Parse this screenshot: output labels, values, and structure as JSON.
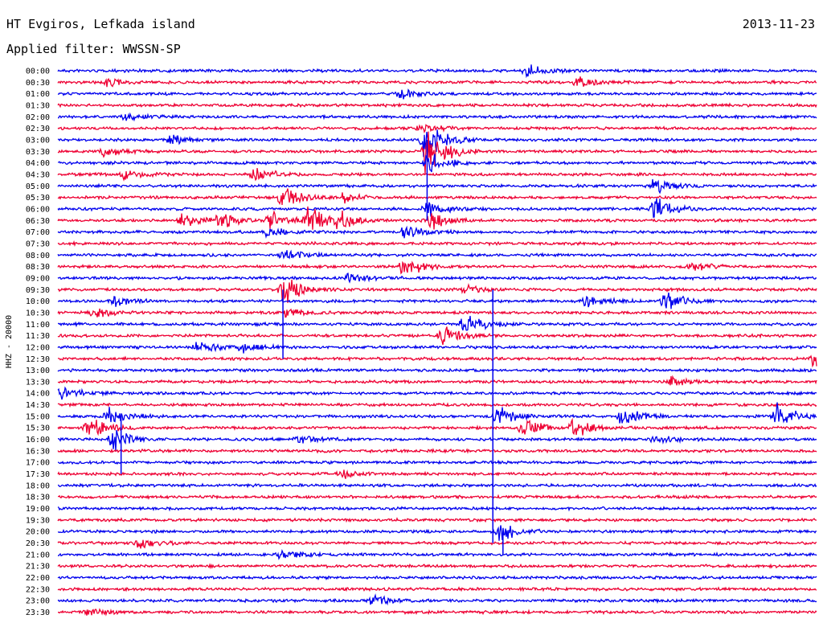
{
  "header": {
    "station": "HT Evgiros, Lefkada island",
    "filter_line": "Applied filter: WWSSN-SP",
    "date": "2013-11-23"
  },
  "chart_data": {
    "type": "line",
    "title": "HT Evgiros, Lefkada island",
    "subtitle": "Applied filter: WWSSN-SP",
    "date": "2013-11-23",
    "ylabel": "HHZ - 20000",
    "y_tick_labels": [
      "00:00",
      "00:30",
      "01:00",
      "01:30",
      "02:00",
      "02:30",
      "03:00",
      "03:30",
      "04:00",
      "04:30",
      "05:00",
      "05:30",
      "06:00",
      "06:30",
      "07:00",
      "07:30",
      "08:00",
      "08:30",
      "09:00",
      "09:30",
      "10:00",
      "10:30",
      "11:00",
      "11:30",
      "12:00",
      "12:30",
      "13:00",
      "13:30",
      "14:00",
      "14:30",
      "15:00",
      "15:30",
      "16:00",
      "16:30",
      "17:00",
      "17:30",
      "18:00",
      "18:30",
      "19:00",
      "19:30",
      "20:00",
      "20:30",
      "21:00",
      "21:30",
      "22:00",
      "22:30",
      "23:00",
      "23:30"
    ],
    "row_colors": [
      "#0000ee",
      "#ee0033"
    ],
    "line_minutes": 30,
    "events": [
      {
        "line": "00:00",
        "minute": 18.5,
        "amp": 0.8
      },
      {
        "line": "00:30",
        "minute": 2.0,
        "amp": 0.5
      },
      {
        "line": "00:30",
        "minute": 20.5,
        "amp": 0.6
      },
      {
        "line": "01:00",
        "minute": 13.5,
        "amp": 0.7
      },
      {
        "line": "02:00",
        "minute": 2.6,
        "amp": 0.5
      },
      {
        "line": "02:30",
        "minute": 14.4,
        "amp": 0.6
      },
      {
        "line": "03:00",
        "minute": 4.4,
        "amp": 0.6
      },
      {
        "line": "03:00",
        "minute": 14.5,
        "amp": 2.5
      },
      {
        "line": "03:30",
        "minute": 14.6,
        "amp": 3.5
      },
      {
        "line": "03:30",
        "minute": 1.8,
        "amp": 0.5
      },
      {
        "line": "04:00",
        "minute": 14.6,
        "amp": 1.5
      },
      {
        "line": "04:30",
        "minute": 7.8,
        "amp": 0.8
      },
      {
        "line": "04:30",
        "minute": 2.6,
        "amp": 0.5
      },
      {
        "line": "05:00",
        "minute": 23.6,
        "amp": 0.8
      },
      {
        "line": "05:30",
        "minute": 8.9,
        "amp": 1.6
      },
      {
        "line": "05:30",
        "minute": 11.3,
        "amp": 0.5
      },
      {
        "line": "06:00",
        "minute": 23.6,
        "amp": 1.4
      },
      {
        "line": "06:00",
        "minute": 14.6,
        "amp": 0.8
      },
      {
        "line": "06:30",
        "minute": 4.9,
        "amp": 0.9
      },
      {
        "line": "06:30",
        "minute": 6.4,
        "amp": 0.9
      },
      {
        "line": "06:30",
        "minute": 8.4,
        "amp": 0.9
      },
      {
        "line": "06:30",
        "minute": 9.9,
        "amp": 1.6
      },
      {
        "line": "06:30",
        "minute": 11.1,
        "amp": 1.1
      },
      {
        "line": "06:30",
        "minute": 14.6,
        "amp": 1.2
      },
      {
        "line": "07:00",
        "minute": 8.3,
        "amp": 0.6
      },
      {
        "line": "07:00",
        "minute": 13.7,
        "amp": 0.8
      },
      {
        "line": "08:00",
        "minute": 8.9,
        "amp": 0.8
      },
      {
        "line": "08:30",
        "minute": 13.7,
        "amp": 1.3
      },
      {
        "line": "08:30",
        "minute": 25.1,
        "amp": 0.6
      },
      {
        "line": "09:00",
        "minute": 11.5,
        "amp": 0.5
      },
      {
        "line": "09:30",
        "minute": 8.9,
        "amp": 1.8
      },
      {
        "line": "09:30",
        "minute": 16.1,
        "amp": 0.5
      },
      {
        "line": "10:00",
        "minute": 2.2,
        "amp": 0.7
      },
      {
        "line": "10:00",
        "minute": 20.9,
        "amp": 0.8
      },
      {
        "line": "10:00",
        "minute": 24.0,
        "amp": 1.2
      },
      {
        "line": "10:30",
        "minute": 1.4,
        "amp": 0.6
      },
      {
        "line": "10:30",
        "minute": 9.0,
        "amp": 0.7
      },
      {
        "line": "11:00",
        "minute": 16.1,
        "amp": 1.5
      },
      {
        "line": "11:30",
        "minute": 15.2,
        "amp": 1.2
      },
      {
        "line": "12:00",
        "minute": 5.5,
        "amp": 0.8
      },
      {
        "line": "12:00",
        "minute": 7.3,
        "amp": 0.6
      },
      {
        "line": "12:30",
        "minute": 29.9,
        "amp": 1.3
      },
      {
        "line": "13:30",
        "minute": 24.3,
        "amp": 0.6
      },
      {
        "line": "14:00",
        "minute": 0.1,
        "amp": 0.9
      },
      {
        "line": "15:00",
        "minute": 2.0,
        "amp": 1.0
      },
      {
        "line": "15:00",
        "minute": 17.4,
        "amp": 1.2
      },
      {
        "line": "15:00",
        "minute": 22.3,
        "amp": 1.3
      },
      {
        "line": "15:00",
        "minute": 28.4,
        "amp": 1.5
      },
      {
        "line": "15:30",
        "minute": 1.2,
        "amp": 1.4
      },
      {
        "line": "15:30",
        "minute": 18.4,
        "amp": 1.2
      },
      {
        "line": "15:30",
        "minute": 20.4,
        "amp": 1.2
      },
      {
        "line": "16:00",
        "minute": 2.2,
        "amp": 1.3
      },
      {
        "line": "16:00",
        "minute": 9.5,
        "amp": 0.6
      },
      {
        "line": "16:00",
        "minute": 23.6,
        "amp": 0.6
      },
      {
        "line": "17:30",
        "minute": 11.2,
        "amp": 0.5
      },
      {
        "line": "20:00",
        "minute": 17.5,
        "amp": 1.0
      },
      {
        "line": "20:30",
        "minute": 3.2,
        "amp": 0.5
      },
      {
        "line": "21:00",
        "minute": 8.8,
        "amp": 0.6
      },
      {
        "line": "23:00",
        "minute": 12.5,
        "amp": 0.6
      },
      {
        "line": "23:30",
        "minute": 1.2,
        "amp": 0.5
      }
    ],
    "vertical_spikes": [
      {
        "minute": 17.2,
        "from": "09:30",
        "to": "20:30"
      },
      {
        "minute": 17.6,
        "from": "20:00",
        "to": "21:00"
      },
      {
        "minute": 8.9,
        "from": "09:30",
        "to": "12:30"
      },
      {
        "minute": 2.5,
        "from": "15:00",
        "to": "17:30"
      },
      {
        "minute": 14.6,
        "from": "03:00",
        "to": "06:30"
      }
    ]
  }
}
